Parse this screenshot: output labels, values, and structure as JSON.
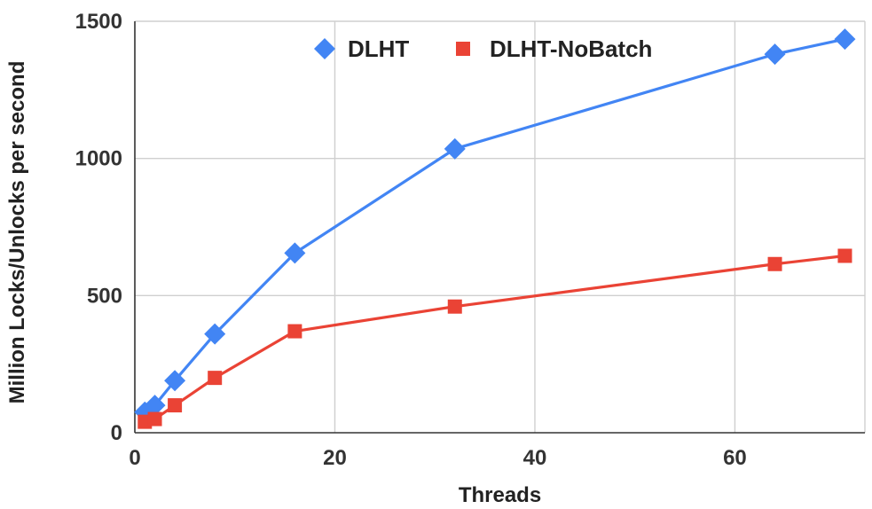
{
  "chart_data": {
    "type": "line",
    "xlabel": "Threads",
    "ylabel": "Million Locks/Unlocks per second",
    "xlim": [
      0,
      73
    ],
    "ylim": [
      0,
      1500
    ],
    "x_ticks": [
      0,
      20,
      40,
      60
    ],
    "y_ticks": [
      0,
      500,
      1000,
      1500
    ],
    "grid": true,
    "legend_position": "top-center",
    "series": [
      {
        "name": "DLHT",
        "color": "#4285f4",
        "marker": "diamond",
        "x": [
          1,
          2,
          4,
          8,
          16,
          32,
          64,
          71
        ],
        "y": [
          75,
          100,
          190,
          360,
          655,
          1035,
          1380,
          1435
        ]
      },
      {
        "name": "DLHT-NoBatch",
        "color": "#ea4335",
        "marker": "square",
        "x": [
          1,
          2,
          4,
          8,
          16,
          32,
          64,
          71
        ],
        "y": [
          40,
          50,
          100,
          200,
          370,
          460,
          615,
          645
        ]
      }
    ]
  }
}
